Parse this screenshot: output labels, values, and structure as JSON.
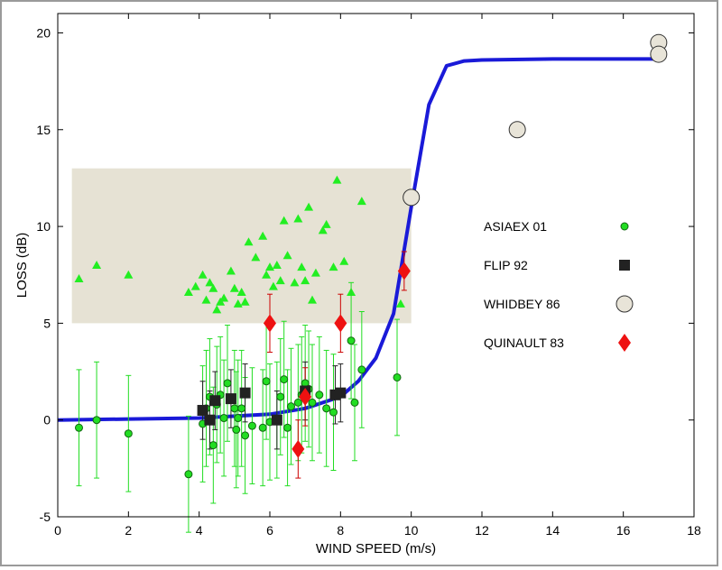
{
  "chart_data": {
    "type": "scatter",
    "title": "",
    "xlabel": "WIND SPEED (m/s)",
    "ylabel": "LOSS (dB)",
    "xlim": [
      0,
      18
    ],
    "ylim": [
      -5,
      21
    ],
    "xticks": [
      0,
      2,
      4,
      6,
      8,
      10,
      12,
      14,
      16,
      18
    ],
    "yticks": [
      -5,
      0,
      5,
      10,
      15,
      20
    ],
    "grid": false,
    "legend_position": "right",
    "shaded_region": {
      "x": [
        0.4,
        10.0
      ],
      "y": [
        5,
        13
      ],
      "color": "#e6e2d4"
    },
    "curve": {
      "color": "#1a1ad8",
      "points": [
        [
          0,
          0
        ],
        [
          2,
          0.05
        ],
        [
          4,
          0.1
        ],
        [
          5,
          0.2
        ],
        [
          6,
          0.3
        ],
        [
          7,
          0.6
        ],
        [
          8,
          1.2
        ],
        [
          8.5,
          2.0
        ],
        [
          9,
          3.2
        ],
        [
          9.5,
          5.5
        ],
        [
          10,
          11
        ],
        [
          10.5,
          16.3
        ],
        [
          11,
          18.3
        ],
        [
          11.5,
          18.55
        ],
        [
          12,
          18.6
        ],
        [
          14,
          18.65
        ],
        [
          17,
          18.65
        ]
      ]
    },
    "triangles": {
      "color": "#22ee22",
      "points": [
        [
          0.6,
          7.3
        ],
        [
          1.1,
          8.0
        ],
        [
          2.0,
          7.5
        ],
        [
          3.7,
          6.6
        ],
        [
          3.9,
          6.9
        ],
        [
          4.1,
          7.5
        ],
        [
          4.2,
          6.2
        ],
        [
          4.3,
          7.1
        ],
        [
          4.4,
          6.8
        ],
        [
          4.5,
          5.7
        ],
        [
          4.6,
          6.1
        ],
        [
          4.7,
          6.3
        ],
        [
          4.9,
          7.7
        ],
        [
          5.0,
          6.8
        ],
        [
          5.1,
          6.0
        ],
        [
          5.2,
          6.6
        ],
        [
          5.3,
          6.1
        ],
        [
          5.4,
          9.2
        ],
        [
          5.6,
          8.4
        ],
        [
          5.8,
          9.5
        ],
        [
          5.9,
          7.5
        ],
        [
          6.0,
          7.9
        ],
        [
          6.1,
          6.9
        ],
        [
          6.2,
          8.0
        ],
        [
          6.3,
          7.2
        ],
        [
          6.4,
          10.3
        ],
        [
          6.5,
          8.5
        ],
        [
          6.7,
          7.1
        ],
        [
          6.8,
          10.4
        ],
        [
          6.9,
          7.9
        ],
        [
          7.0,
          7.2
        ],
        [
          7.1,
          11.0
        ],
        [
          7.2,
          6.2
        ],
        [
          7.3,
          7.6
        ],
        [
          7.5,
          9.8
        ],
        [
          7.6,
          10.1
        ],
        [
          7.8,
          7.9
        ],
        [
          7.9,
          12.4
        ],
        [
          8.1,
          8.2
        ],
        [
          8.3,
          6.6
        ],
        [
          8.6,
          11.3
        ],
        [
          9.7,
          6.0
        ]
      ]
    },
    "series": [
      {
        "name": "ASIAEX 01",
        "marker": "circle",
        "color": "#22dd22",
        "points": [
          [
            0.6,
            -0.4,
            3.0
          ],
          [
            1.1,
            0.0,
            3.0
          ],
          [
            2.0,
            -0.7,
            3.0
          ],
          [
            3.7,
            -2.8,
            3.0
          ],
          [
            4.1,
            -0.2,
            3.0
          ],
          [
            4.2,
            0.6,
            3.0
          ],
          [
            4.3,
            1.2,
            3.0
          ],
          [
            4.4,
            -1.3,
            3.0
          ],
          [
            4.5,
            0.8,
            3.0
          ],
          [
            4.6,
            1.3,
            3.0
          ],
          [
            4.7,
            0.1,
            3.0
          ],
          [
            4.8,
            1.9,
            3.0
          ],
          [
            5.0,
            0.6,
            3.0
          ],
          [
            5.05,
            -0.5,
            3.0
          ],
          [
            5.1,
            0.1,
            3.0
          ],
          [
            5.2,
            0.6,
            3.0
          ],
          [
            5.3,
            -0.8,
            3.0
          ],
          [
            5.5,
            -0.3,
            3.0
          ],
          [
            5.8,
            -0.4,
            3.0
          ],
          [
            5.9,
            2.0,
            3.0
          ],
          [
            6.0,
            -0.1,
            3.0
          ],
          [
            6.2,
            0.0,
            3.0
          ],
          [
            6.3,
            1.2,
            3.0
          ],
          [
            6.4,
            2.1,
            3.0
          ],
          [
            6.5,
            -0.4,
            3.0
          ],
          [
            6.6,
            0.7,
            3.0
          ],
          [
            6.8,
            0.9,
            3.0
          ],
          [
            6.9,
            1.3,
            3.0
          ],
          [
            7.0,
            1.9,
            3.0
          ],
          [
            7.1,
            1.6,
            3.0
          ],
          [
            7.2,
            0.9,
            3.0
          ],
          [
            7.4,
            1.3,
            3.0
          ],
          [
            7.6,
            0.6,
            3.0
          ],
          [
            7.8,
            0.4,
            3.0
          ],
          [
            8.3,
            4.1,
            3.0
          ],
          [
            8.4,
            0.9,
            3.0
          ],
          [
            8.6,
            2.6,
            3.0
          ],
          [
            9.6,
            2.2,
            3.0
          ]
        ]
      },
      {
        "name": "FLIP 92",
        "marker": "square",
        "color": "#222222",
        "points": [
          [
            4.1,
            0.5,
            1.5
          ],
          [
            4.3,
            0.0,
            1.5
          ],
          [
            4.45,
            1.0,
            1.5
          ],
          [
            4.9,
            1.1,
            1.5
          ],
          [
            5.3,
            1.4,
            1.5
          ],
          [
            6.2,
            0.0,
            1.5
          ],
          [
            7.0,
            1.5,
            1.5
          ],
          [
            7.85,
            1.3,
            1.5
          ],
          [
            8.0,
            1.4,
            1.5
          ]
        ]
      },
      {
        "name": "WHIDBEY 86",
        "marker": "circle-large",
        "color": "#e8e4d8",
        "points": [
          [
            10.0,
            11.5,
            0
          ],
          [
            13.0,
            15.0,
            0
          ],
          [
            17.0,
            19.5,
            0
          ],
          [
            17.0,
            18.9,
            0
          ]
        ]
      },
      {
        "name": "QUINAULT 83",
        "marker": "diamond",
        "color": "#ee1111",
        "points": [
          [
            6.0,
            5.0,
            1.5
          ],
          [
            6.8,
            -1.5,
            1.5
          ],
          [
            7.0,
            1.2,
            1.5
          ],
          [
            8.0,
            5.0,
            1.5
          ],
          [
            9.8,
            7.7,
            1.0
          ]
        ]
      }
    ]
  }
}
